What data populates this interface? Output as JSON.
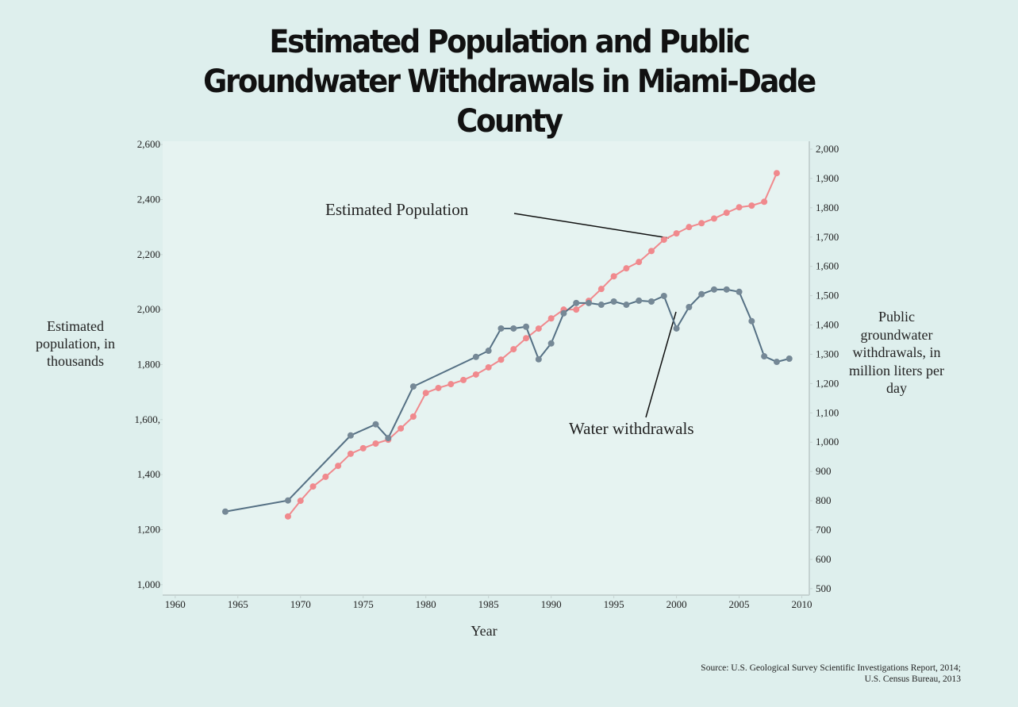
{
  "chart_data": {
    "type": "line",
    "title": "Estimated Population and Public Groundwater Withdrawals in Miami-Dade County",
    "x_label": "Year",
    "y_label": "Estimated population, in thousands",
    "y2_label": "Public groundwater withdrawals, in million liters per day",
    "source": [
      "Source: U.S. Geological Survey Scientific Investigations Report, 2014;",
      "U.S. Census Bureau, 2013"
    ],
    "xlim": [
      1959,
      2010.6
    ],
    "xticks": [
      1960,
      1965,
      1970,
      1975,
      1980,
      1985,
      1990,
      1995,
      2000,
      2005,
      2010
    ],
    "ylim": [
      962,
      2612
    ],
    "yticks": [
      {
        "value": 1000,
        "label": "1,000"
      },
      {
        "value": 1200,
        "label": "1,200"
      },
      {
        "value": 1400,
        "label": "1,400"
      },
      {
        "value": 1600,
        "label": "1,600,"
      },
      {
        "value": 1800,
        "label": "1,800"
      },
      {
        "value": 2000,
        "label": "2,000"
      },
      {
        "value": 2200,
        "label": "2,200"
      },
      {
        "value": 2400,
        "label": "2,400"
      },
      {
        "value": 2600,
        "label": "2,600"
      }
    ],
    "y2lim": [
      478,
      2027
    ],
    "y2ticks": [
      500,
      600,
      700,
      800,
      900,
      {
        "value": 1000,
        "label": "1,000"
      },
      {
        "value": 1100,
        "label": "1,100"
      },
      {
        "value": 1200,
        "label": "1,200"
      },
      {
        "value": 1300,
        "label": "1,300"
      },
      {
        "value": 1400,
        "label": "1,400"
      },
      {
        "value": 1500,
        "label": "1,500"
      },
      {
        "value": 1600,
        "label": "1,600"
      },
      {
        "value": 1700,
        "label": "1,700"
      },
      {
        "value": 1800,
        "label": "1,800"
      },
      {
        "value": 1900,
        "label": "1,900"
      },
      {
        "value": 2000,
        "label": "2,000"
      }
    ],
    "series": [
      {
        "name": "Estimated Population",
        "color": "#f0898d",
        "axis": "y",
        "x": [
          1969,
          1970,
          1971,
          1972,
          1973,
          1974,
          1975,
          1976,
          1977,
          1978,
          1979,
          1980,
          1981,
          1982,
          1983,
          1984,
          1985,
          1986,
          1987,
          1988,
          1989,
          1990,
          1991,
          1992,
          1993,
          1994,
          1995,
          1996,
          1997,
          1998,
          1999,
          2000,
          2001,
          2002,
          2003,
          2004,
          2005,
          2006,
          2007,
          2008
        ],
        "values": [
          1248,
          1305,
          1357,
          1392,
          1432,
          1476,
          1496,
          1513,
          1527,
          1568,
          1611,
          1697,
          1715,
          1729,
          1744,
          1764,
          1790,
          1818,
          1856,
          1896,
          1931,
          1968,
          2000,
          2000,
          2032,
          2075,
          2121,
          2150,
          2173,
          2213,
          2254,
          2277,
          2300,
          2314,
          2331,
          2352,
          2372,
          2378,
          2392,
          2496
        ]
      },
      {
        "name": "Water withdrawals",
        "color": "#557084",
        "axis": "y2",
        "x": [
          1964,
          1969,
          1974,
          1976,
          1977,
          1979,
          1984,
          1985,
          1986,
          1987,
          1988,
          1989,
          1990,
          1991,
          1992,
          1993,
          1994,
          1995,
          1996,
          1997,
          1998,
          1999,
          2000,
          2001,
          2002,
          2003,
          2004,
          2005,
          2006,
          2007,
          2008,
          2009
        ],
        "values": [
          763,
          801,
          1023,
          1061,
          1014,
          1190,
          1291,
          1312,
          1388,
          1388,
          1394,
          1283,
          1337,
          1440,
          1475,
          1475,
          1469,
          1480,
          1469,
          1483,
          1480,
          1499,
          1388,
          1461,
          1505,
          1521,
          1521,
          1513,
          1413,
          1293,
          1274,
          1285
        ]
      }
    ]
  }
}
